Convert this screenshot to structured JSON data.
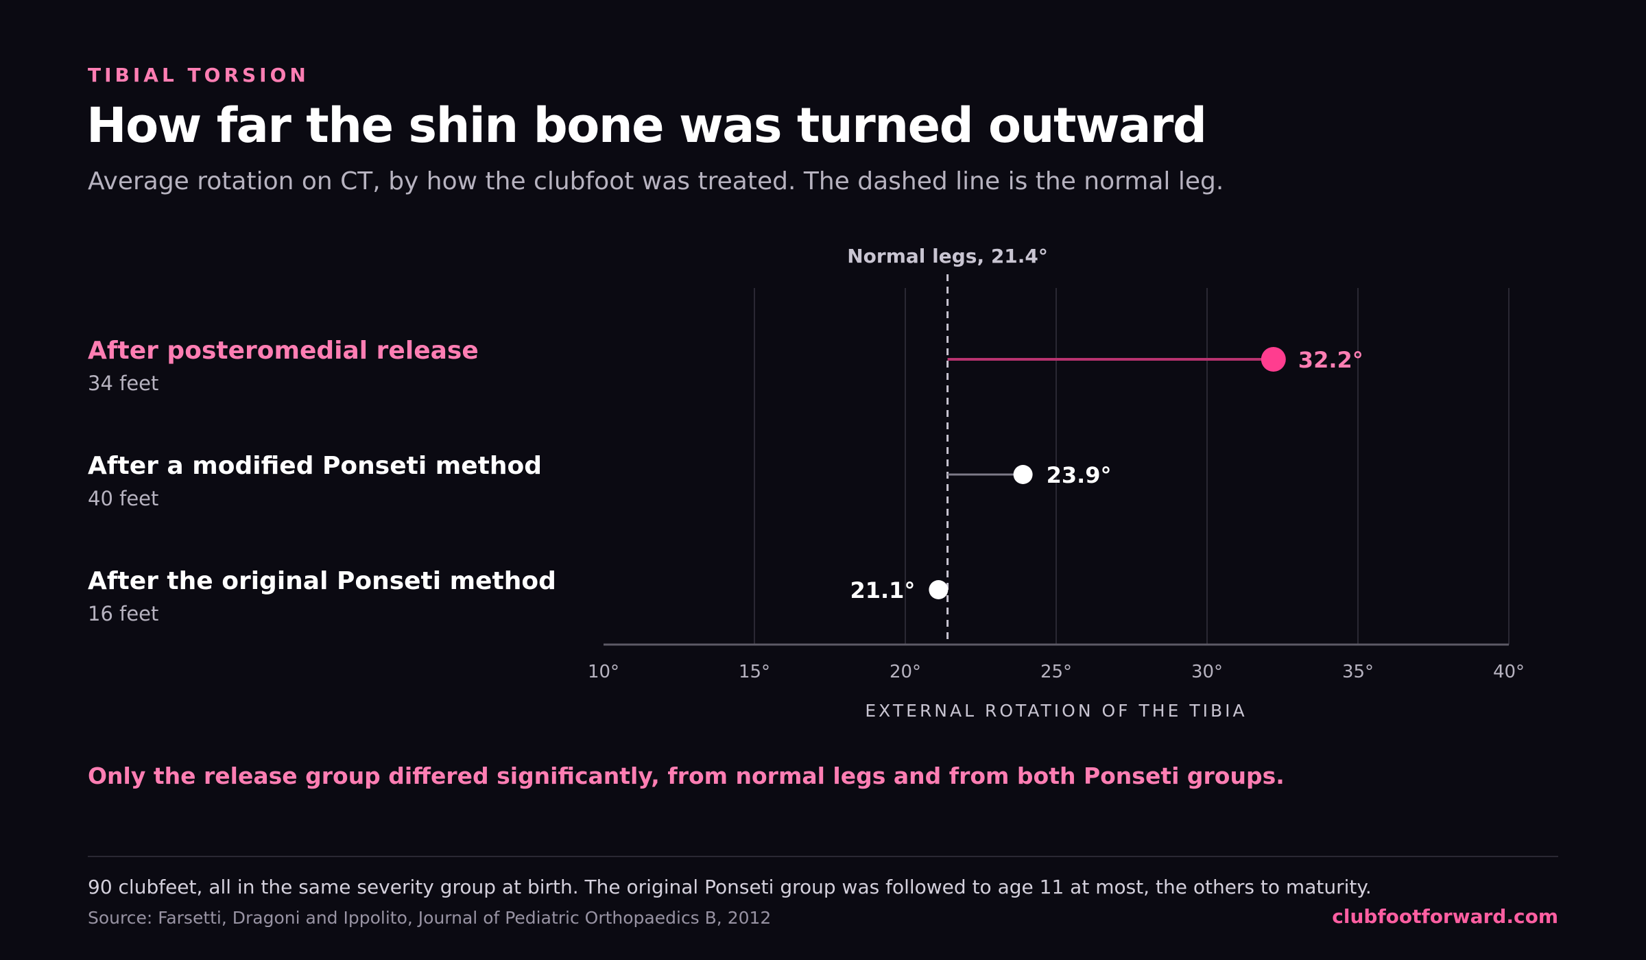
{
  "header": {
    "kicker": "TIBIAL TORSION",
    "title": "How far the shin bone was turned outward",
    "subtitle": "Average rotation on CT, by how the clubfoot was treated. The dashed line is the normal leg."
  },
  "colors": {
    "background": "#0b0a12",
    "accent": "#ff3d8f",
    "accent_text": "#ff7eb3",
    "neutral_point": "#ffffff",
    "reference_line": "#c9c5d2"
  },
  "rows": [
    {
      "label": "After posteromedial release",
      "sublabel": "34 feet",
      "highlight": true
    },
    {
      "label": "After a modified Ponseti method",
      "sublabel": "40 feet",
      "highlight": false
    },
    {
      "label": "After the original Ponseti method",
      "sublabel": "16 feet",
      "highlight": false
    }
  ],
  "chart_data": {
    "type": "dot",
    "categories": [
      "After posteromedial release",
      "After a modified Ponseti method",
      "After the original Ponseti method"
    ],
    "values": [
      32.2,
      23.9,
      21.1
    ],
    "value_labels": [
      "32.2°",
      "23.9°",
      "21.1°"
    ],
    "reference": {
      "value": 21.4,
      "label": "Normal legs, 21.4°",
      "style": "dashed"
    },
    "xlabel": "EXTERNAL ROTATION OF THE TIBIA",
    "xlim": [
      10,
      40
    ],
    "xticks": [
      10,
      15,
      20,
      25,
      30,
      35,
      40
    ],
    "xtick_labels": [
      "10°",
      "15°",
      "20°",
      "25°",
      "30°",
      "35°",
      "40°"
    ],
    "grid": "vertical"
  },
  "takeaway": "Only the release group differed significantly, from normal legs and from both Ponseti groups.",
  "footer": {
    "note": "90 clubfeet, all in the same severity group at birth. The original Ponseti group was followed to age 11 at most, the others to maturity.",
    "source": "Source: Farsetti, Dragoni and Ippolito, Journal of Pediatric Orthopaedics B, 2012",
    "site": "clubfootforward.com"
  }
}
